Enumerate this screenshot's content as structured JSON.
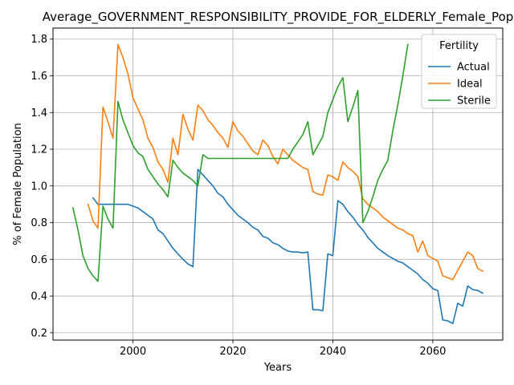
{
  "chart_data": {
    "type": "line",
    "title": "Average_GOVERNMENT_RESPONSIBILITY_PROVIDE_FOR_ELDERLY_Female_Pop",
    "xlabel": "Years",
    "ylabel": "% of Female Population",
    "xlim": [
      1984,
      2074
    ],
    "ylim": [
      0.16,
      1.86
    ],
    "xticks": [
      2000,
      2020,
      2040,
      2060
    ],
    "yticks": [
      0.2,
      0.4,
      0.6,
      0.8,
      1.0,
      1.2,
      1.4,
      1.6,
      1.8
    ],
    "grid": true,
    "legend": {
      "title": "Fertility",
      "position": "top-right"
    },
    "series": [
      {
        "name": "Actual",
        "color": "#1f77b4",
        "x": [
          1992,
          1993,
          1994,
          1995,
          1996,
          1997,
          1998,
          1999,
          2000,
          2001,
          2002,
          2003,
          2004,
          2005,
          2006,
          2007,
          2008,
          2009,
          2010,
          2011,
          2012,
          2013,
          2014,
          2015,
          2016,
          2017,
          2018,
          2019,
          2020,
          2021,
          2022,
          2023,
          2024,
          2025,
          2026,
          2027,
          2028,
          2029,
          2030,
          2031,
          2032,
          2033,
          2034,
          2035,
          2036,
          2037,
          2038,
          2039,
          2040,
          2041,
          2042,
          2043,
          2044,
          2045,
          2046,
          2047,
          2048,
          2049,
          2050,
          2051,
          2052,
          2053,
          2054,
          2055,
          2056,
          2057,
          2058,
          2059,
          2060,
          2061,
          2062,
          2063,
          2064,
          2065,
          2066,
          2067,
          2068,
          2069,
          2070
        ],
        "values": [
          0.935,
          0.9,
          0.9,
          0.9,
          0.9,
          0.9,
          0.9,
          0.9,
          0.89,
          0.88,
          0.86,
          0.84,
          0.82,
          0.76,
          0.74,
          0.7,
          0.66,
          0.63,
          0.6,
          0.575,
          0.56,
          1.09,
          1.06,
          1.03,
          1.0,
          0.96,
          0.94,
          0.9,
          0.87,
          0.84,
          0.82,
          0.8,
          0.775,
          0.76,
          0.725,
          0.715,
          0.69,
          0.68,
          0.66,
          0.645,
          0.64,
          0.64,
          0.635,
          0.64,
          0.325,
          0.325,
          0.32,
          0.63,
          0.62,
          0.92,
          0.9,
          0.86,
          0.83,
          0.79,
          0.76,
          0.72,
          0.69,
          0.66,
          0.64,
          0.62,
          0.605,
          0.59,
          0.58,
          0.56,
          0.54,
          0.52,
          0.49,
          0.47,
          0.44,
          0.43,
          0.27,
          0.265,
          0.25,
          0.36,
          0.345,
          0.455,
          0.435,
          0.43,
          0.415
        ]
      },
      {
        "name": "Ideal",
        "color": "#ff7f0e",
        "x": [
          1991,
          1992,
          1993,
          1994,
          1995,
          1996,
          1997,
          1998,
          1999,
          2000,
          2001,
          2002,
          2003,
          2004,
          2005,
          2006,
          2007,
          2008,
          2009,
          2010,
          2011,
          2012,
          2013,
          2014,
          2015,
          2016,
          2017,
          2018,
          2019,
          2020,
          2021,
          2022,
          2023,
          2024,
          2025,
          2026,
          2027,
          2028,
          2029,
          2030,
          2031,
          2032,
          2033,
          2034,
          2035,
          2036,
          2037,
          2038,
          2039,
          2040,
          2041,
          2042,
          2043,
          2044,
          2045,
          2046,
          2047,
          2048,
          2049,
          2050,
          2051,
          2052,
          2053,
          2054,
          2055,
          2056,
          2057,
          2058,
          2059,
          2060,
          2061,
          2062,
          2063,
          2064,
          2065,
          2066,
          2067,
          2068,
          2069,
          2070
        ],
        "values": [
          0.9,
          0.81,
          0.77,
          1.43,
          1.35,
          1.26,
          1.77,
          1.7,
          1.61,
          1.48,
          1.42,
          1.36,
          1.26,
          1.21,
          1.13,
          1.09,
          1.02,
          1.26,
          1.17,
          1.39,
          1.31,
          1.25,
          1.44,
          1.41,
          1.36,
          1.33,
          1.29,
          1.26,
          1.21,
          1.35,
          1.3,
          1.27,
          1.23,
          1.19,
          1.17,
          1.25,
          1.22,
          1.16,
          1.12,
          1.2,
          1.17,
          1.14,
          1.12,
          1.1,
          1.09,
          0.97,
          0.955,
          0.95,
          1.06,
          1.05,
          1.03,
          1.13,
          1.1,
          1.08,
          1.05,
          0.93,
          0.9,
          0.88,
          0.86,
          0.83,
          0.81,
          0.79,
          0.77,
          0.76,
          0.74,
          0.73,
          0.64,
          0.7,
          0.62,
          0.605,
          0.59,
          0.51,
          0.5,
          0.49,
          0.54,
          0.59,
          0.64,
          0.62,
          0.55,
          0.535
        ]
      },
      {
        "name": "Sterile",
        "color": "#2ca02c",
        "x": [
          1988,
          1989,
          1990,
          1991,
          1992,
          1993,
          1994,
          1995,
          1996,
          1997,
          1998,
          1999,
          2000,
          2001,
          2002,
          2003,
          2004,
          2005,
          2006,
          2007,
          2008,
          2009,
          2010,
          2011,
          2012,
          2013,
          2014,
          2015,
          2016,
          2017,
          2018,
          2019,
          2020,
          2021,
          2022,
          2023,
          2024,
          2025,
          2026,
          2027,
          2028,
          2029,
          2030,
          2031,
          2032,
          2033,
          2034,
          2035,
          2036,
          2037,
          2038,
          2039,
          2040,
          2041,
          2042,
          2043,
          2044,
          2045,
          2046,
          2047,
          2048,
          2049,
          2050,
          2051,
          2052,
          2053,
          2054,
          2055
        ],
        "values": [
          0.88,
          0.76,
          0.62,
          0.55,
          0.51,
          0.48,
          0.89,
          0.82,
          0.77,
          1.46,
          1.36,
          1.29,
          1.22,
          1.18,
          1.16,
          1.09,
          1.05,
          1.01,
          0.98,
          0.94,
          1.14,
          1.1,
          1.07,
          1.05,
          1.03,
          1.0,
          1.17,
          1.15,
          1.15,
          1.15,
          1.15,
          1.15,
          1.15,
          1.15,
          1.15,
          1.15,
          1.15,
          1.15,
          1.15,
          1.15,
          1.15,
          1.15,
          1.15,
          1.15,
          1.2,
          1.24,
          1.28,
          1.35,
          1.17,
          1.22,
          1.27,
          1.4,
          1.47,
          1.54,
          1.59,
          1.35,
          1.43,
          1.52,
          0.8,
          0.86,
          0.94,
          1.03,
          1.09,
          1.14,
          1.3,
          1.44,
          1.6,
          1.77
        ]
      }
    ]
  }
}
